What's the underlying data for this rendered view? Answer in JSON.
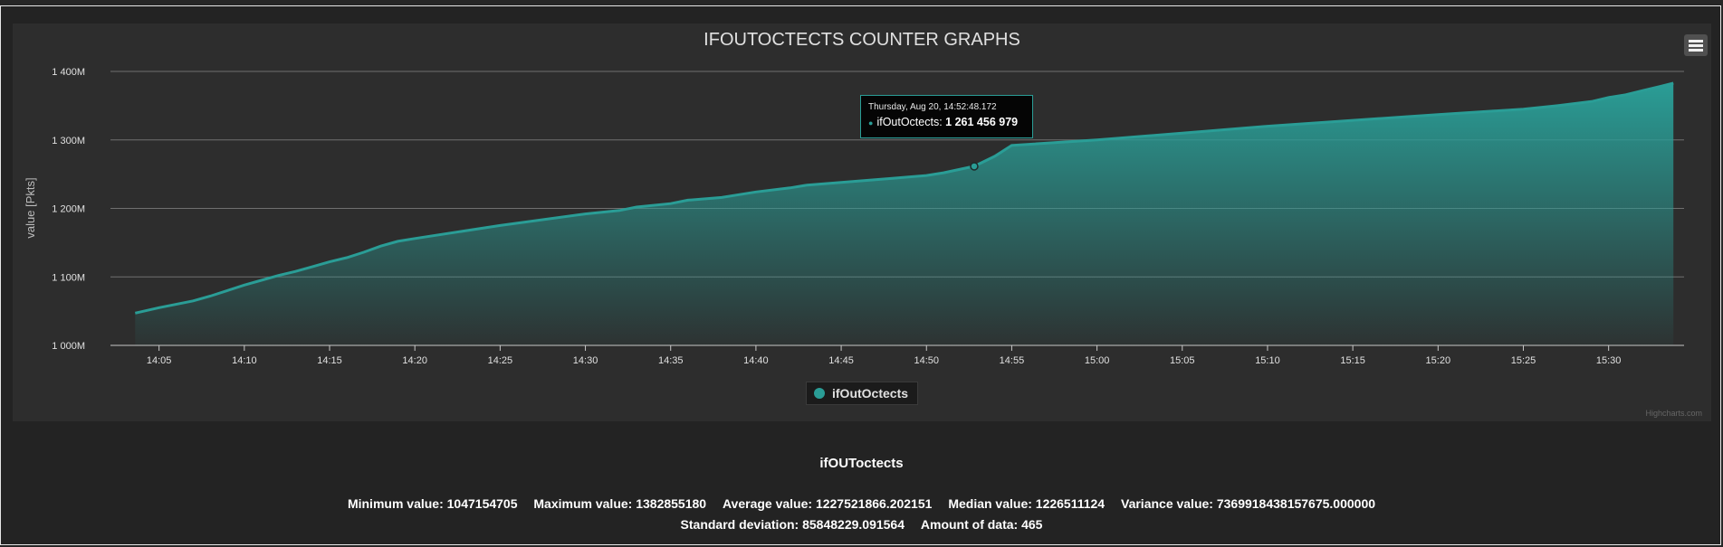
{
  "chart_data": {
    "type": "area",
    "title": "IFOUTOCTECTS COUNTER GRAPHS",
    "ylabel": "value [Pkts]",
    "xlabel": "",
    "ylim": [
      1000000000,
      1400000000
    ],
    "y_ticks": [
      {
        "value": 1000000000,
        "label": "1 000M"
      },
      {
        "value": 1100000000,
        "label": "1 100M"
      },
      {
        "value": 1200000000,
        "label": "1 200M"
      },
      {
        "value": 1300000000,
        "label": "1 300M"
      },
      {
        "value": 1400000000,
        "label": "1 400M"
      }
    ],
    "xlim": [
      "14:03",
      "15:34"
    ],
    "x_ticks": [
      "14:05",
      "14:10",
      "14:15",
      "14:20",
      "14:25",
      "14:30",
      "14:35",
      "14:40",
      "14:45",
      "14:50",
      "14:55",
      "15:00",
      "15:05",
      "15:10",
      "15:15",
      "15:20",
      "15:25",
      "15:30"
    ],
    "grid": true,
    "legend_position": "bottom-center",
    "series": [
      {
        "name": "ifOutOctects",
        "color": "#2a9d96",
        "x": [
          "14:03:36",
          "14:05",
          "14:07",
          "14:08",
          "14:09",
          "14:10",
          "14:11",
          "14:12",
          "14:13",
          "14:14",
          "14:15",
          "14:16",
          "14:17",
          "14:18",
          "14:19",
          "14:20",
          "14:25",
          "14:30",
          "14:32",
          "14:33",
          "14:35",
          "14:36",
          "14:38",
          "14:39",
          "14:40",
          "14:42",
          "14:43",
          "14:45",
          "14:48",
          "14:50",
          "14:51",
          "14:52:48",
          "14:54",
          "14:55",
          "15:00",
          "15:05",
          "15:10",
          "15:20",
          "15:25",
          "15:27",
          "15:29",
          "15:30",
          "15:31",
          "15:32",
          "15:33",
          "15:33:48"
        ],
        "y": [
          1047154705,
          1055000000,
          1065000000,
          1072000000,
          1080000000,
          1088000000,
          1095000000,
          1102000000,
          1108000000,
          1115000000,
          1122000000,
          1128000000,
          1136000000,
          1145000000,
          1152000000,
          1156000000,
          1175000000,
          1192000000,
          1197000000,
          1202000000,
          1207000000,
          1212000000,
          1216000000,
          1220000000,
          1224000000,
          1230000000,
          1234000000,
          1238000000,
          1244000000,
          1248000000,
          1252000000,
          1261456979,
          1276000000,
          1292000000,
          1300000000,
          1310000000,
          1320000000,
          1337000000,
          1345000000,
          1350000000,
          1356000000,
          1362000000,
          1366000000,
          1372000000,
          1378000000,
          1382855180
        ]
      }
    ]
  },
  "tooltip": {
    "date": "Thursday, Aug 20, 14:52:48.172",
    "series_label": "ifOutOctects:",
    "value": "1 261 456 979",
    "point": {
      "x": "14:52:48",
      "y": 1261456979
    }
  },
  "menu_icon": "hamburger-menu-icon",
  "credits": "Highcharts.com",
  "stats": {
    "title": "ifOUToctects",
    "minimum": "Minimum value: 1047154705",
    "maximum": "Maximum value: 1382855180",
    "average": "Average value: 1227521866.202151",
    "median": "Median value: 1226511124",
    "variance": "Variance value: 7369918438157675.000000",
    "std_dev": "Standard deviation: 85848229.091564",
    "amount": "Amount of data: 465"
  }
}
